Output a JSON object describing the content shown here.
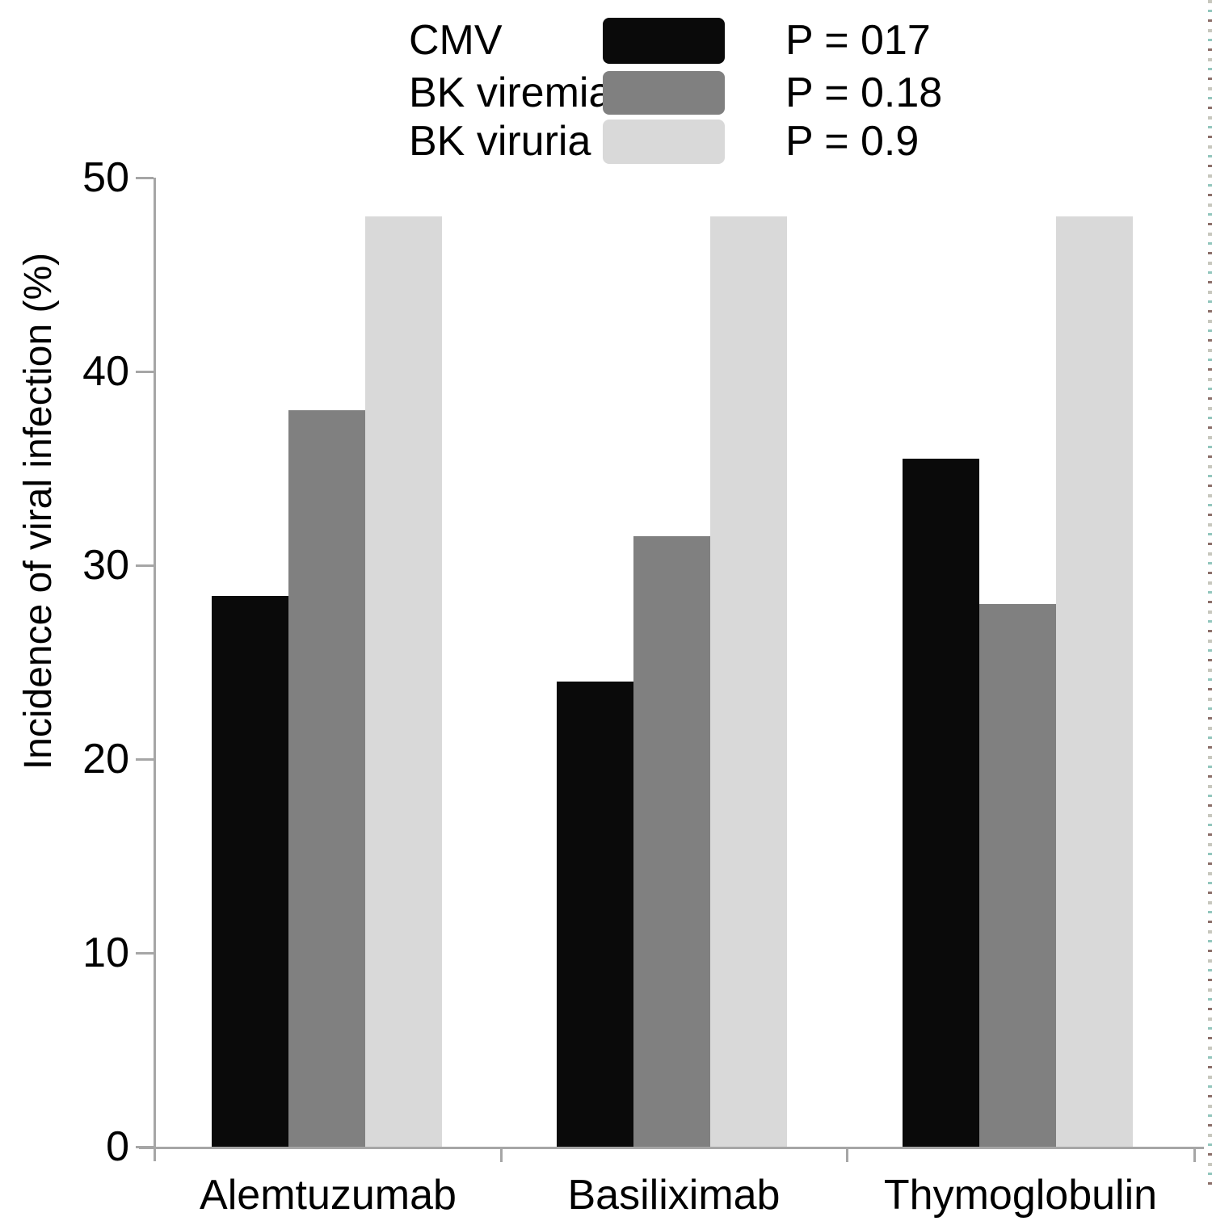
{
  "chart_data": {
    "type": "bar",
    "title": "",
    "xlabel": "",
    "ylabel": "Incidence of viral infection (%)",
    "ylim": [
      0,
      50
    ],
    "yticks": [
      0,
      10,
      20,
      30,
      40,
      50
    ],
    "grid": false,
    "legend_position": "top-center",
    "axis_color": "#a6a6a6",
    "text_color": "#000000",
    "categories": [
      "Alemtuzumab",
      "Basiliximab",
      "Thymoglobulin"
    ],
    "series": [
      {
        "name": "CMV",
        "color": "#0a0a0a",
        "p_label": "P = 017",
        "values": [
          28.4,
          24.0,
          35.5
        ]
      },
      {
        "name": "BK viremia",
        "color": "#808080",
        "p_label": "P = 0.18",
        "values": [
          38.0,
          31.5,
          28.0
        ]
      },
      {
        "name": "BK viruria",
        "color": "#d9d9d9",
        "p_label": "P = 0.9",
        "values": [
          48.0,
          48.0,
          48.0
        ]
      }
    ]
  }
}
